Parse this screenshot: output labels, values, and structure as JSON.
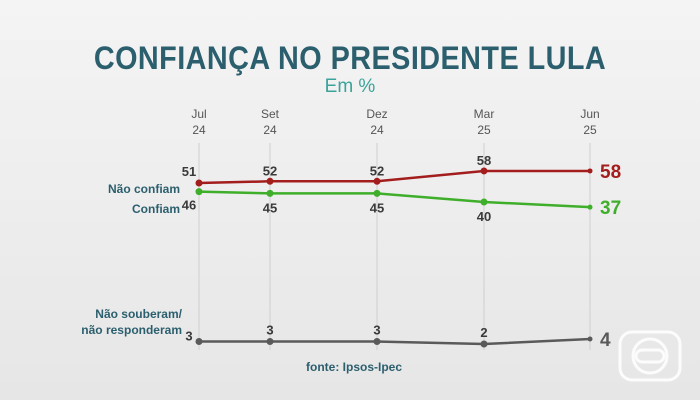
{
  "title": "CONFIANÇA NO PRESIDENTE LULA",
  "subtitle": "Em %",
  "source": "fonte: Ipsos-Ipec",
  "colors": {
    "nao_confiam": "#a31d1d",
    "confiam": "#3fae2a",
    "nao_souberam": "#5a5a5a",
    "title": "#2c5f6e",
    "subtitle": "#3aa39a"
  },
  "chart_data": {
    "type": "line",
    "x": [
      {
        "month": "Jul",
        "year": "24"
      },
      {
        "month": "Set",
        "year": "24"
      },
      {
        "month": "Dez",
        "year": "24"
      },
      {
        "month": "Mar",
        "year": "25"
      },
      {
        "month": "Jun",
        "year": "25"
      }
    ],
    "series": [
      {
        "key": "nao_confiam",
        "name": "Não confiam",
        "values": [
          51,
          52,
          52,
          58,
          58
        ]
      },
      {
        "key": "confiam",
        "name": "Confiam",
        "values": [
          46,
          45,
          45,
          40,
          37
        ]
      },
      {
        "key": "nao_souberam",
        "name": "Não souberam/ não responderam",
        "name_lines": [
          "Não souberam/",
          "não responderam"
        ],
        "values": [
          3,
          3,
          3,
          2,
          4
        ]
      }
    ],
    "grid": "vertical",
    "legend": "labels left of lines"
  }
}
